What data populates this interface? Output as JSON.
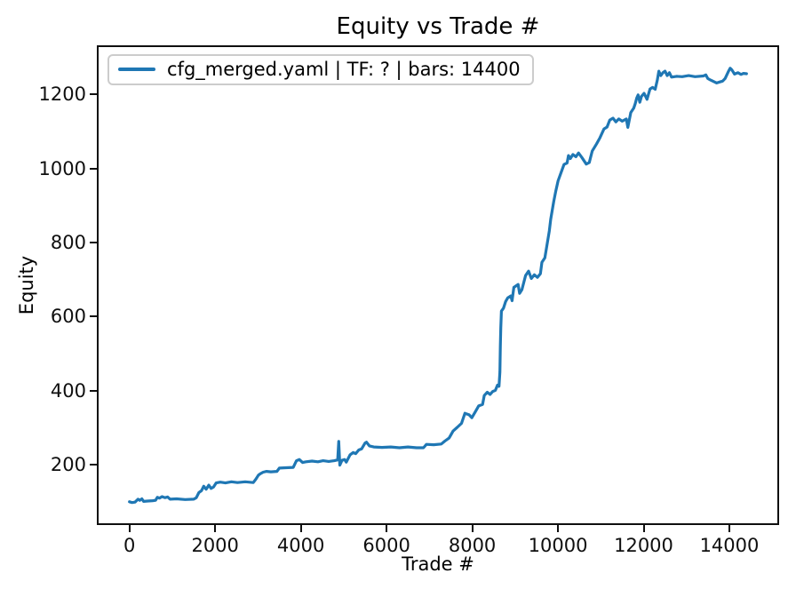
{
  "figure": {
    "background": "#ffffff",
    "frame_color": "#0f0f0f"
  },
  "chart_data": {
    "type": "line",
    "title": "Equity vs Trade #",
    "xlabel": "Trade #",
    "ylabel": "Equity",
    "grid": false,
    "legend_position": "upper left",
    "xlim": [
      -720,
      15120
    ],
    "ylim": [
      42,
      1328
    ],
    "xticks": [
      0,
      2000,
      4000,
      6000,
      8000,
      10000,
      12000,
      14000
    ],
    "yticks": [
      200,
      400,
      600,
      800,
      1000,
      1200
    ],
    "series": [
      {
        "name": "cfg_merged.yaml | TF: ? | bars: 14400",
        "color": "#1f77b4",
        "points": [
          [
            0,
            100
          ],
          [
            60,
            98
          ],
          [
            130,
            99
          ],
          [
            200,
            107
          ],
          [
            240,
            104
          ],
          [
            290,
            108
          ],
          [
            330,
            101
          ],
          [
            420,
            102
          ],
          [
            540,
            103
          ],
          [
            610,
            104
          ],
          [
            650,
            112
          ],
          [
            700,
            110
          ],
          [
            760,
            114
          ],
          [
            830,
            111
          ],
          [
            890,
            113
          ],
          [
            950,
            107
          ],
          [
            1100,
            108
          ],
          [
            1300,
            106
          ],
          [
            1500,
            107
          ],
          [
            1560,
            111
          ],
          [
            1620,
            125
          ],
          [
            1680,
            130
          ],
          [
            1733,
            142
          ],
          [
            1790,
            134
          ],
          [
            1851,
            145
          ],
          [
            1905,
            136
          ],
          [
            1960,
            140
          ],
          [
            2024,
            151
          ],
          [
            2120,
            153
          ],
          [
            2240,
            151
          ],
          [
            2380,
            154
          ],
          [
            2520,
            152
          ],
          [
            2700,
            154
          ],
          [
            2890,
            152
          ],
          [
            2950,
            161
          ],
          [
            3010,
            172
          ],
          [
            3060,
            176
          ],
          [
            3120,
            180
          ],
          [
            3200,
            182
          ],
          [
            3300,
            181
          ],
          [
            3442,
            182
          ],
          [
            3500,
            191
          ],
          [
            3650,
            192
          ],
          [
            3822,
            193
          ],
          [
            3897,
            211
          ],
          [
            3966,
            214
          ],
          [
            4040,
            206
          ],
          [
            4120,
            208
          ],
          [
            4260,
            210
          ],
          [
            4400,
            208
          ],
          [
            4520,
            211
          ],
          [
            4650,
            209
          ],
          [
            4780,
            211
          ],
          [
            4860,
            213
          ],
          [
            4885,
            263
          ],
          [
            4910,
            199
          ],
          [
            4960,
            212
          ],
          [
            5020,
            214
          ],
          [
            5060,
            207
          ],
          [
            5150,
            227
          ],
          [
            5220,
            233
          ],
          [
            5280,
            230
          ],
          [
            5350,
            240
          ],
          [
            5420,
            243
          ],
          [
            5500,
            259
          ],
          [
            5530,
            261
          ],
          [
            5600,
            251
          ],
          [
            5700,
            248
          ],
          [
            5894,
            247
          ],
          [
            6100,
            248
          ],
          [
            6300,
            246
          ],
          [
            6500,
            248
          ],
          [
            6700,
            246
          ],
          [
            6862,
            246
          ],
          [
            6930,
            255
          ],
          [
            7100,
            254
          ],
          [
            7276,
            256
          ],
          [
            7360,
            264
          ],
          [
            7460,
            272
          ],
          [
            7553,
            291
          ],
          [
            7650,
            301
          ],
          [
            7750,
            312
          ],
          [
            7829,
            339
          ],
          [
            7925,
            335
          ],
          [
            7990,
            327
          ],
          [
            8060,
            341
          ],
          [
            8150,
            359
          ],
          [
            8240,
            363
          ],
          [
            8280,
            387
          ],
          [
            8350,
            396
          ],
          [
            8415,
            390
          ],
          [
            8480,
            398
          ],
          [
            8540,
            401
          ],
          [
            8590,
            415
          ],
          [
            8625,
            412
          ],
          [
            8645,
            450
          ],
          [
            8655,
            520
          ],
          [
            8665,
            570
          ],
          [
            8680,
            615
          ],
          [
            8730,
            623
          ],
          [
            8780,
            641
          ],
          [
            8830,
            651
          ],
          [
            8900,
            656
          ],
          [
            8930,
            643
          ],
          [
            8970,
            679
          ],
          [
            9070,
            687
          ],
          [
            9105,
            663
          ],
          [
            9160,
            673
          ],
          [
            9245,
            711
          ],
          [
            9315,
            723
          ],
          [
            9380,
            703
          ],
          [
            9450,
            713
          ],
          [
            9520,
            706
          ],
          [
            9590,
            716
          ],
          [
            9625,
            747
          ],
          [
            9694,
            759
          ],
          [
            9797,
            831
          ],
          [
            9832,
            863
          ],
          [
            9901,
            911
          ],
          [
            9950,
            939
          ],
          [
            10004,
            967
          ],
          [
            10070,
            988
          ],
          [
            10143,
            1011
          ],
          [
            10212,
            1015
          ],
          [
            10246,
            1035
          ],
          [
            10290,
            1027
          ],
          [
            10350,
            1038
          ],
          [
            10420,
            1032
          ],
          [
            10480,
            1042
          ],
          [
            10557,
            1030
          ],
          [
            10661,
            1012
          ],
          [
            10730,
            1016
          ],
          [
            10799,
            1047
          ],
          [
            10902,
            1067
          ],
          [
            10980,
            1083
          ],
          [
            11075,
            1107
          ],
          [
            11145,
            1112
          ],
          [
            11210,
            1131
          ],
          [
            11284,
            1136
          ],
          [
            11350,
            1126
          ],
          [
            11420,
            1134
          ],
          [
            11500,
            1128
          ],
          [
            11595,
            1134
          ],
          [
            11630,
            1111
          ],
          [
            11699,
            1151
          ],
          [
            11768,
            1163
          ],
          [
            11803,
            1175
          ],
          [
            11840,
            1191
          ],
          [
            11872,
            1199
          ],
          [
            11910,
            1179
          ],
          [
            11950,
            1195
          ],
          [
            12010,
            1203
          ],
          [
            12079,
            1187
          ],
          [
            12148,
            1215
          ],
          [
            12210,
            1219
          ],
          [
            12270,
            1214
          ],
          [
            12320,
            1239
          ],
          [
            12355,
            1263
          ],
          [
            12400,
            1251
          ],
          [
            12450,
            1259
          ],
          [
            12500,
            1263
          ],
          [
            12550,
            1251
          ],
          [
            12600,
            1259
          ],
          [
            12650,
            1247
          ],
          [
            12770,
            1249
          ],
          [
            12900,
            1248
          ],
          [
            13050,
            1251
          ],
          [
            13200,
            1248
          ],
          [
            13393,
            1250
          ],
          [
            13450,
            1253
          ],
          [
            13497,
            1243
          ],
          [
            13560,
            1239
          ],
          [
            13635,
            1235
          ],
          [
            13704,
            1231
          ],
          [
            13780,
            1234
          ],
          [
            13842,
            1236
          ],
          [
            13900,
            1243
          ],
          [
            13981,
            1263
          ],
          [
            14020,
            1271
          ],
          [
            14060,
            1266
          ],
          [
            14120,
            1255
          ],
          [
            14200,
            1259
          ],
          [
            14270,
            1254
          ],
          [
            14330,
            1257
          ],
          [
            14400,
            1256
          ]
        ]
      }
    ]
  }
}
